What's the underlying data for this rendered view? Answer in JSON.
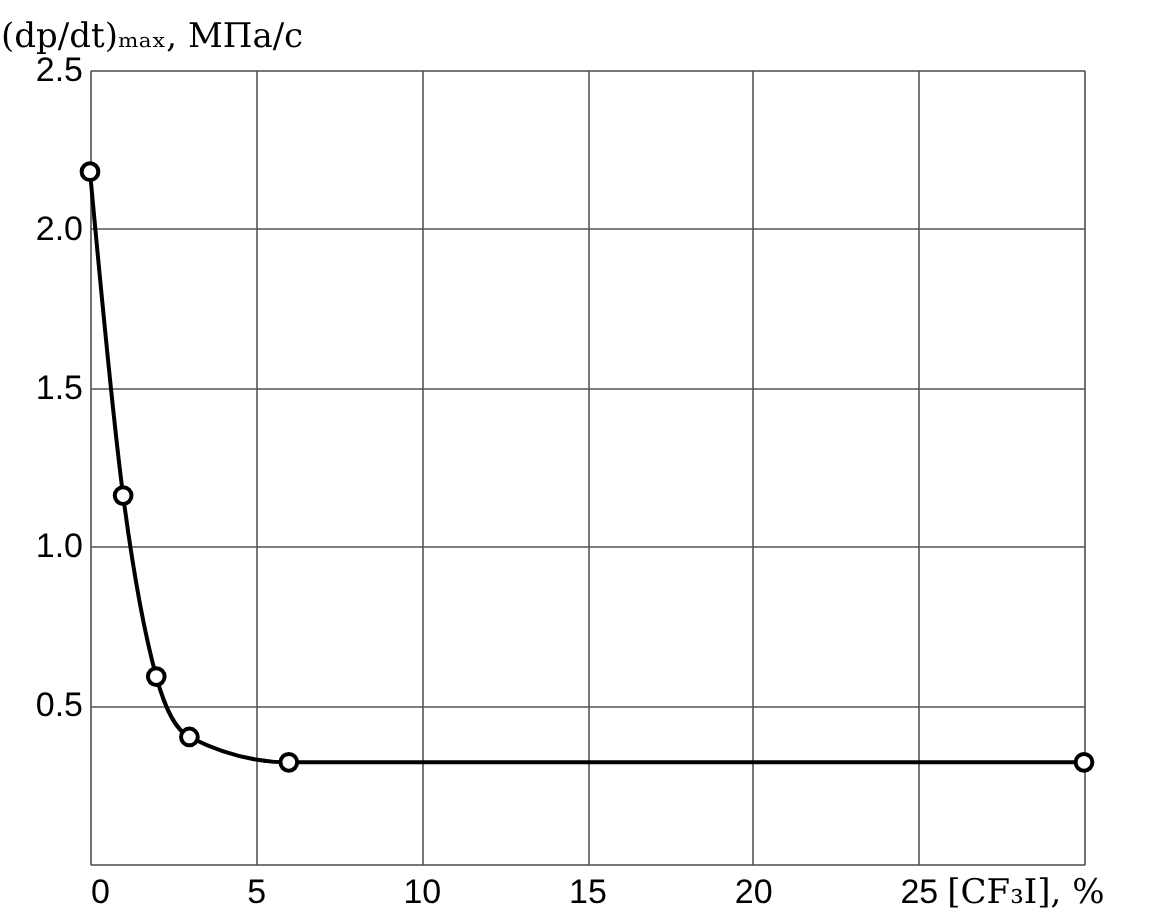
{
  "chart_data": {
    "type": "line",
    "xlabel": "[CF₃I], %",
    "ylabel": "(dp/dt)ₘₐₓ, МПа/с",
    "x": [
      0,
      1,
      2,
      3,
      6,
      30
    ],
    "series": [
      {
        "color": "#000000",
        "values": [
          2.18,
          1.16,
          0.59,
          0.4,
          0.32,
          0.32
        ]
      }
    ],
    "xlim": [
      0,
      30
    ],
    "ylim": [
      0,
      2.5
    ],
    "xticks": [
      0,
      5,
      10,
      15,
      20,
      25,
      {
        "value": 30,
        "label": null
      }
    ],
    "yticks": [
      {
        "value": 0,
        "label": null
      },
      0.5,
      {
        "value": 1,
        "label": "1.0"
      },
      1.5,
      {
        "value": 2,
        "label": "2.0"
      },
      2.5
    ],
    "grid": true,
    "marker": "circle",
    "line_style": "solid"
  }
}
